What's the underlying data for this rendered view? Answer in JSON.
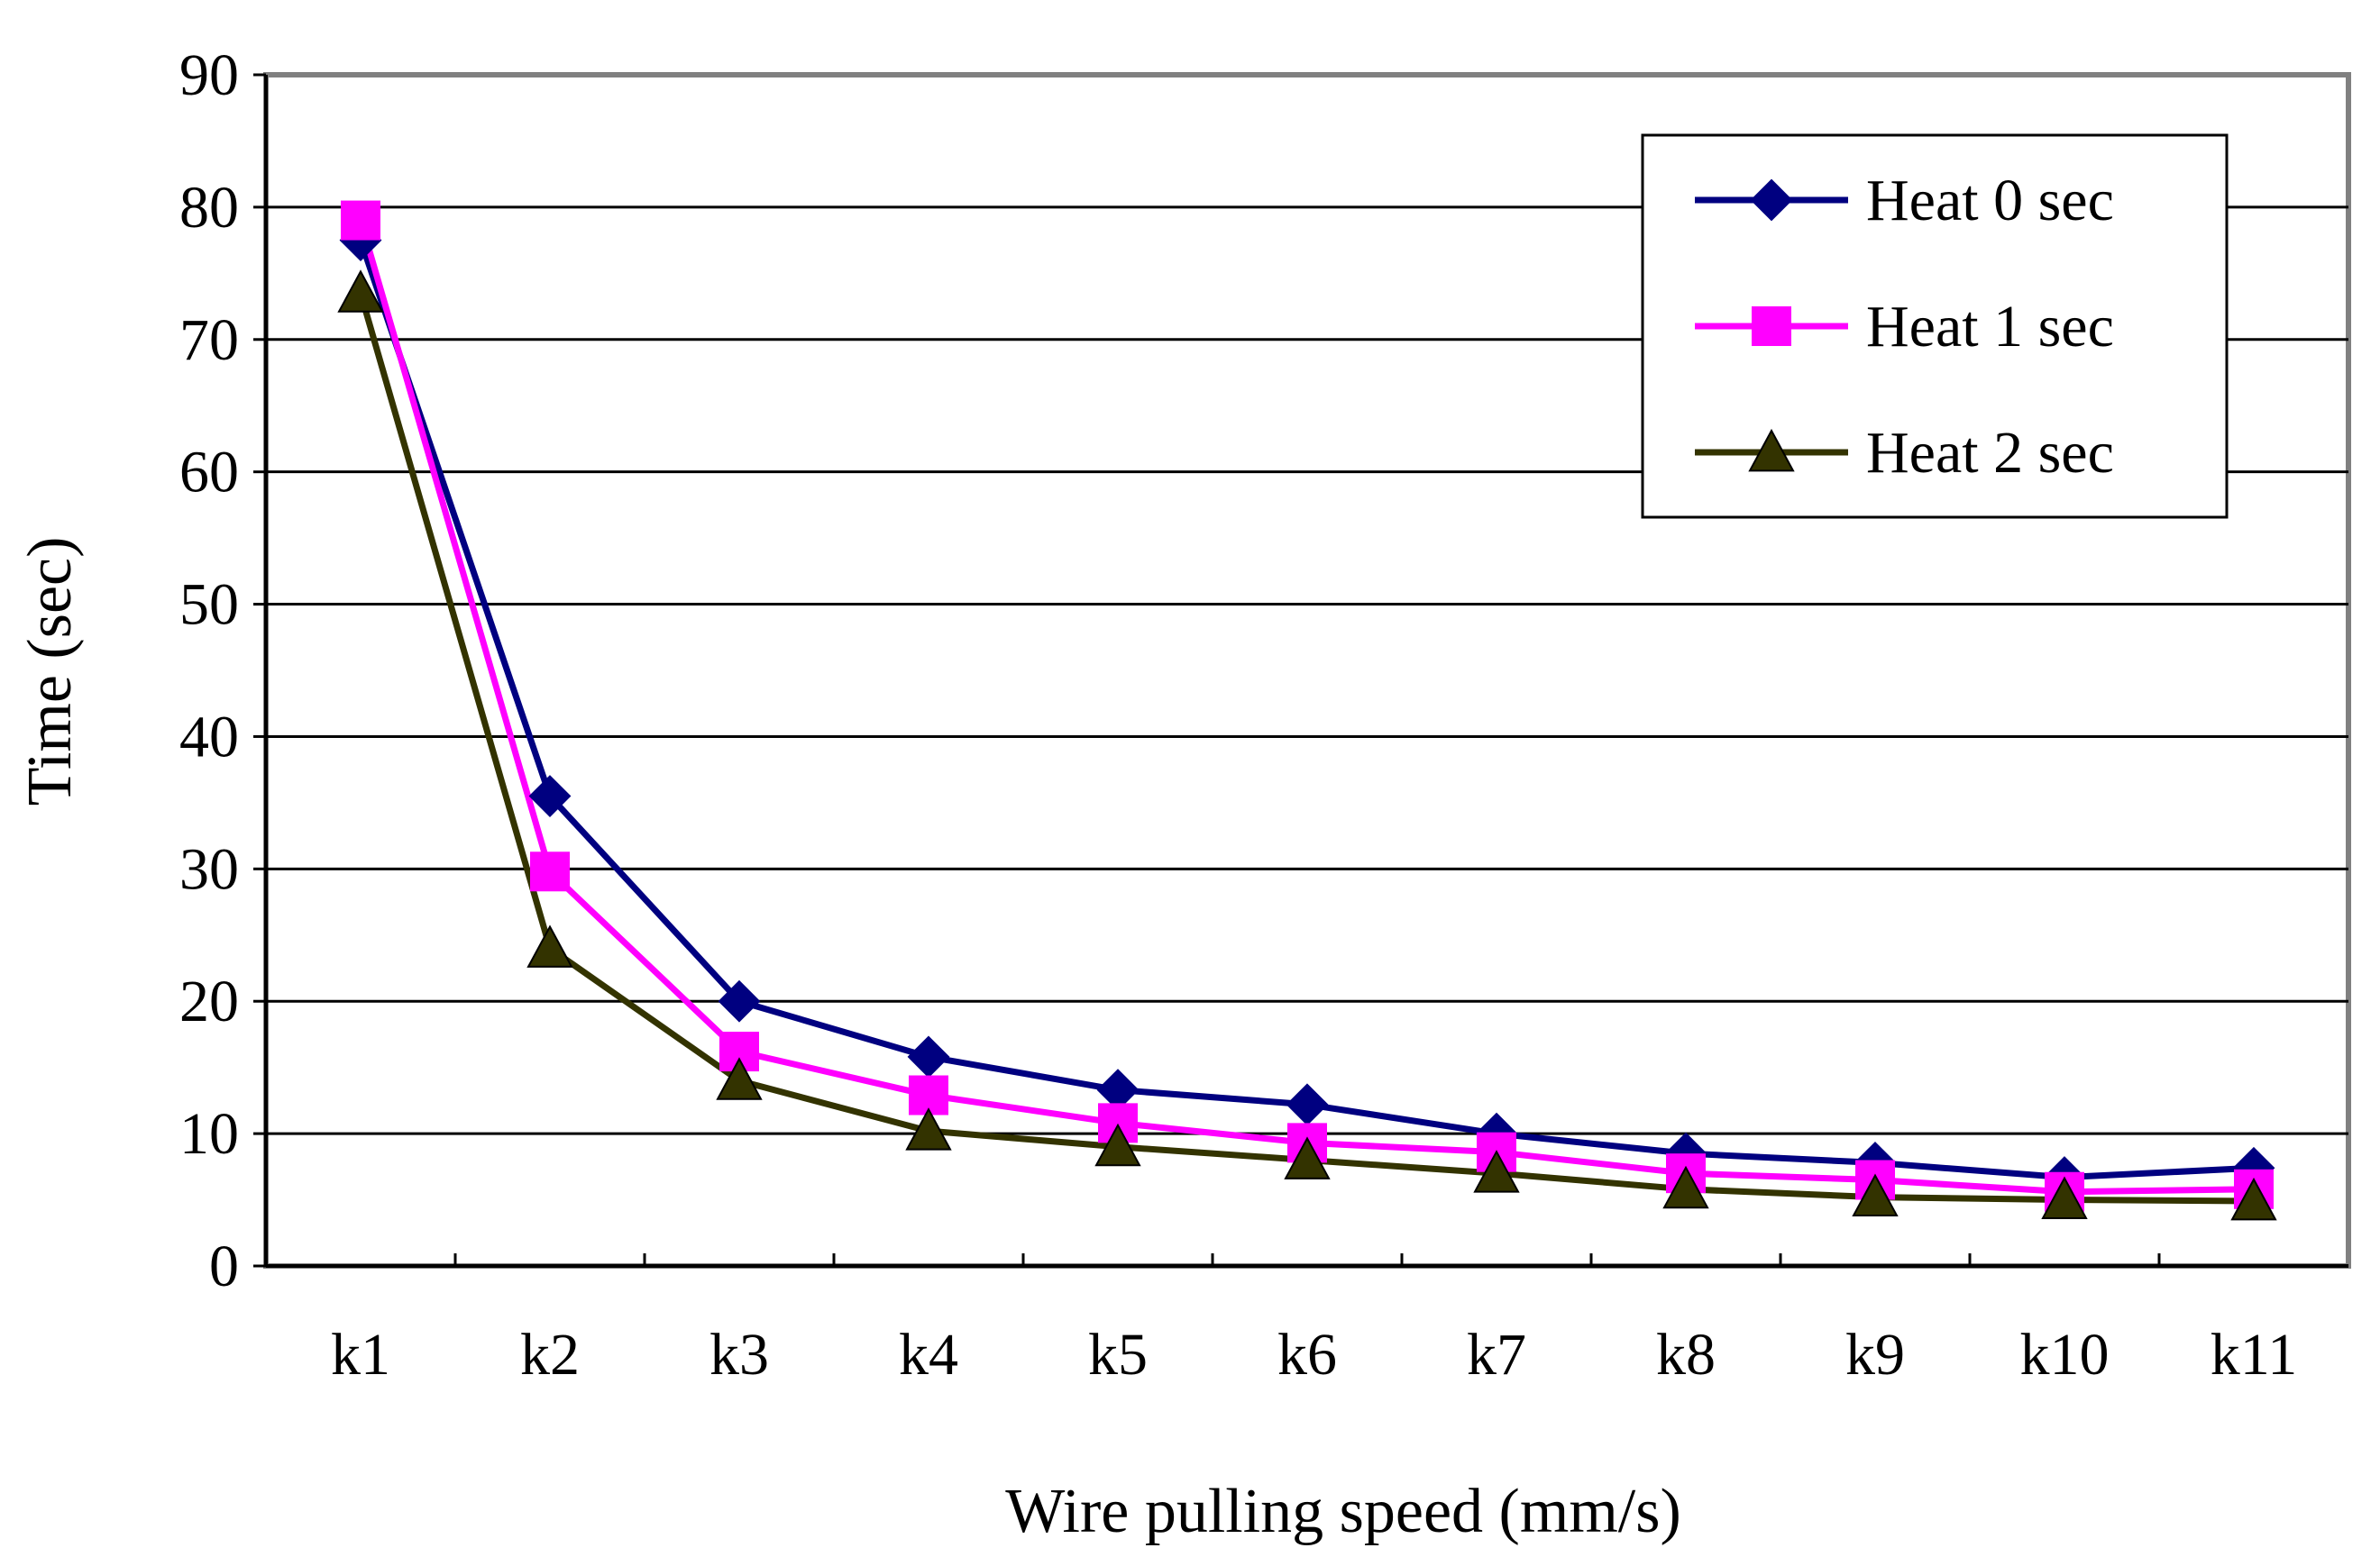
{
  "chart_data": {
    "type": "line",
    "title": "",
    "xlabel": "Wire pulling speed (mm/s)",
    "ylabel": "Time (sec)",
    "categories": [
      "k1",
      "k2",
      "k3",
      "k4",
      "k5",
      "k6",
      "k7",
      "k8",
      "k9",
      "k10",
      "k11"
    ],
    "ylim": [
      0,
      90
    ],
    "yticks": [
      0,
      10,
      20,
      30,
      40,
      50,
      60,
      70,
      80,
      90
    ],
    "grid": true,
    "legend_position": "top-right",
    "series": [
      {
        "name": "Heat 0 sec",
        "marker": "diamond",
        "color": "#000080",
        "values": [
          77.5,
          35.5,
          20.0,
          15.8,
          13.3,
          12.2,
          10.0,
          8.5,
          7.8,
          6.7,
          7.4
        ]
      },
      {
        "name": "Heat 1 sec",
        "marker": "square",
        "color": "#FF00FF",
        "values": [
          79.0,
          29.8,
          16.2,
          12.9,
          10.8,
          9.3,
          8.6,
          7.0,
          6.5,
          5.6,
          5.8
        ]
      },
      {
        "name": "Heat 2 sec",
        "marker": "triangle",
        "color": "#333300",
        "values": [
          73.5,
          24.0,
          14.0,
          10.2,
          9.0,
          8.0,
          7.0,
          5.8,
          5.2,
          5.0,
          4.9
        ]
      }
    ]
  }
}
